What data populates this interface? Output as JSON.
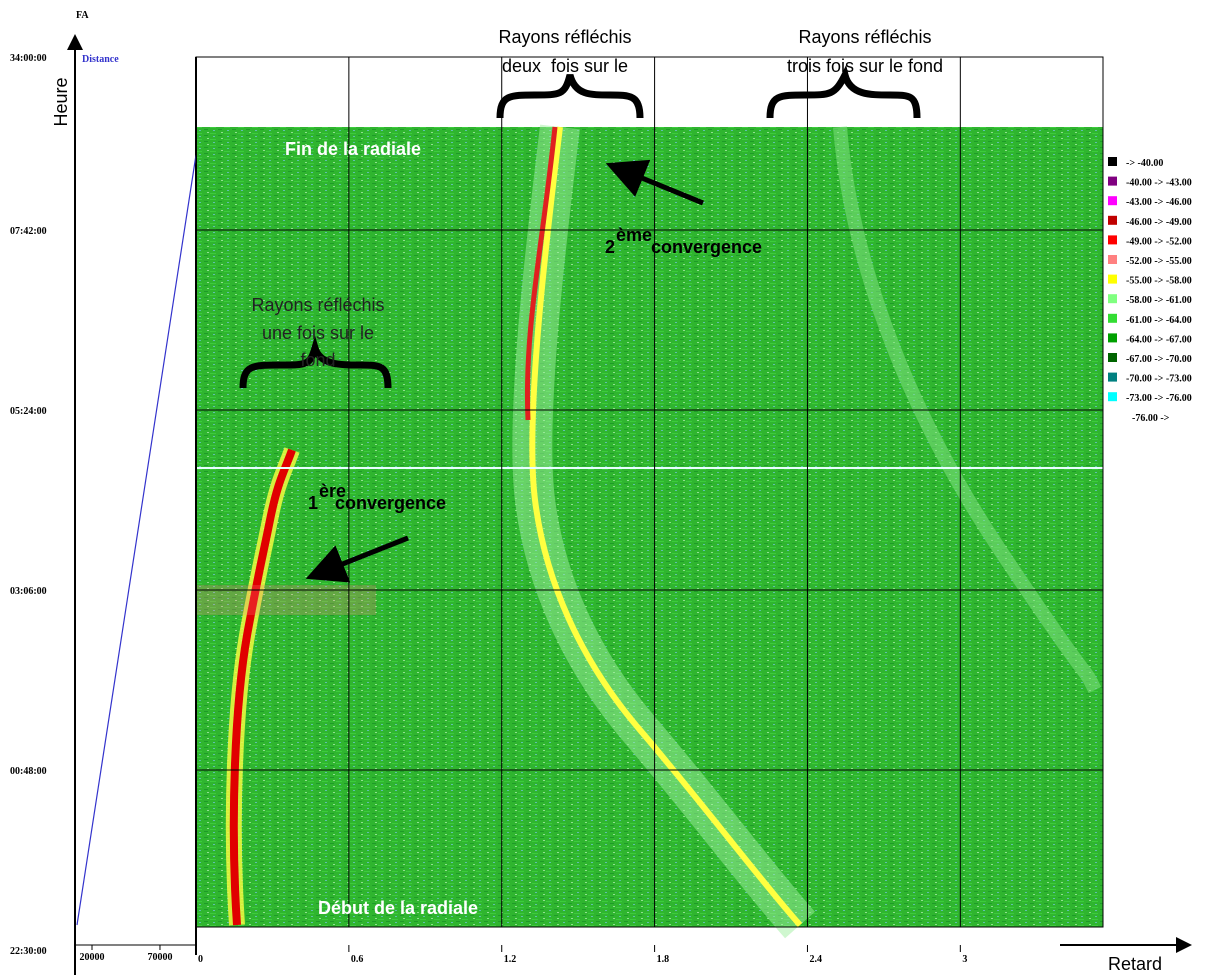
{
  "chart_data": {
    "type": "heatmap",
    "x_label": "Retard",
    "y_label": "Heure",
    "corner_label": "FA",
    "xlim": [
      0,
      3.56
    ],
    "xticks": [
      0,
      0.6,
      1.2,
      1.8,
      2.4,
      3
    ],
    "ylim": [
      0,
      11.41
    ],
    "yticks": [
      {
        "value": 0,
        "label": "22:30:00"
      },
      {
        "value": 2.3,
        "label": "00:48:00"
      },
      {
        "value": 4.6,
        "label": "03:06:00"
      },
      {
        "value": 6.9,
        "label": "05:24:00"
      },
      {
        "value": 9.2,
        "label": "07:42:00"
      },
      {
        "value": 11.41,
        "label": "34:00:00"
      }
    ],
    "grid": true,
    "distance_label": "Distance",
    "distance_color": "#3333cc",
    "distance_lim": [
      7500,
      96500
    ],
    "distance_ticks": [
      20000,
      70000
    ],
    "legend": [
      {
        "name": "-> -40.00",
        "color": "#000000"
      },
      {
        "name": "-40.00 -> -43.00",
        "color": "#800080"
      },
      {
        "name": "-43.00 -> -46.00",
        "color": "#ff00ff"
      },
      {
        "name": "-46.00 -> -49.00",
        "color": "#c00000"
      },
      {
        "name": "-49.00 -> -52.00",
        "color": "#ff0000"
      },
      {
        "name": "-52.00 -> -55.00",
        "color": "#ff8080"
      },
      {
        "name": "-55.00 -> -58.00",
        "color": "#ffff00"
      },
      {
        "name": "-58.00 -> -61.00",
        "color": "#80ff80"
      },
      {
        "name": "-61.00 -> -64.00",
        "color": "#33dd33"
      },
      {
        "name": "-64.00 -> -67.00",
        "color": "#00a000"
      },
      {
        "name": "-67.00 -> -70.00",
        "color": "#006400"
      },
      {
        "name": "-70.00 -> -73.00",
        "color": "#008080"
      },
      {
        "name": "-73.00 -> -76.00",
        "color": "#00ffff"
      },
      {
        "name": "-76.00 ->"
      }
    ],
    "annotations": [
      "Rayons réfléchis",
      "deux  fois sur le",
      "Rayons réfléchis",
      "trois fois sur le fond",
      "Rayons réfléchis",
      "une fois sur le",
      "fond",
      "Fin de la radiale",
      "Début de la radiale",
      "2",
      "ème",
      "convergence",
      "1",
      "ère",
      "convergence"
    ]
  }
}
